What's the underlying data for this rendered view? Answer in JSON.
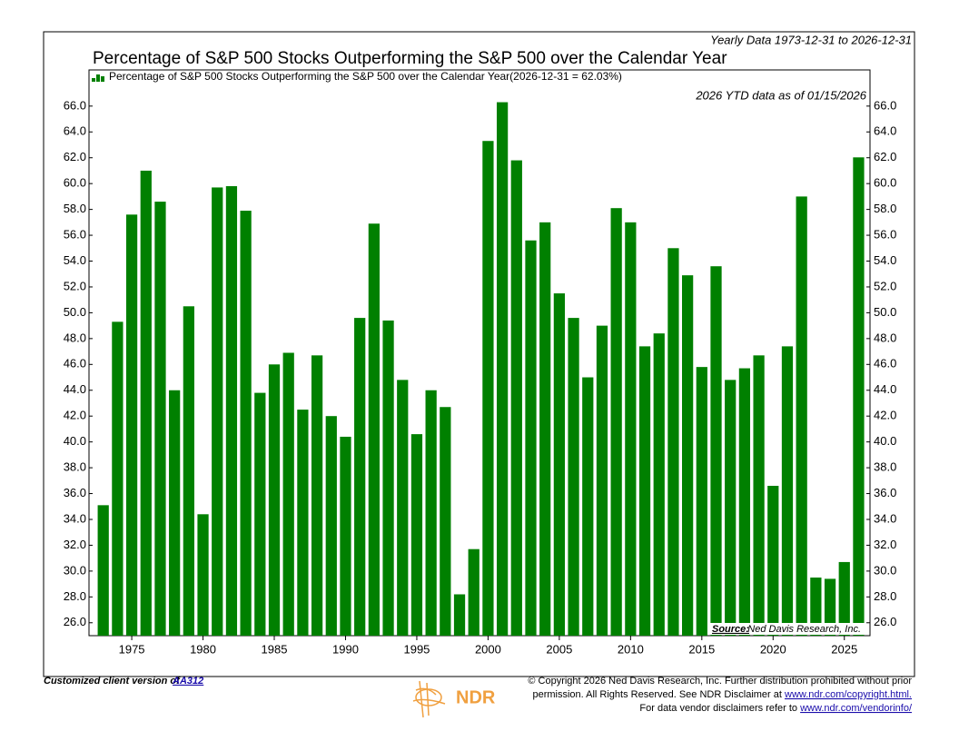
{
  "chart_data": {
    "type": "bar",
    "title": "Percentage of S&P 500 Stocks Outperforming the S&P 500 over the Calendar Year",
    "subtitle": "Yearly Data 1973-12-31 to 2026-12-31",
    "annotation": "2026 YTD data as of 01/15/2026",
    "source_label": "Source:",
    "source": "Ned Davis Research, Inc.",
    "series": [
      {
        "name": "Percentage of S&P 500 Stocks Outperforming the S&P 500 over the Calendar Year(2026-12-31 = 62.03%)",
        "color": "#008000",
        "values": [
          35.1,
          49.3,
          57.6,
          61.0,
          58.6,
          44.0,
          50.5,
          34.4,
          59.7,
          59.8,
          57.9,
          43.8,
          46.0,
          46.9,
          42.5,
          46.7,
          42.0,
          40.4,
          49.6,
          56.9,
          49.4,
          44.8,
          40.6,
          44.0,
          42.7,
          28.2,
          31.7,
          63.3,
          66.3,
          61.8,
          55.6,
          57.0,
          51.5,
          49.6,
          45.0,
          49.0,
          58.1,
          57.0,
          47.4,
          48.4,
          55.0,
          52.9,
          45.8,
          53.6,
          44.8,
          45.7,
          46.7,
          36.6,
          47.4,
          59.0,
          29.5,
          29.4,
          30.7,
          62.03
        ]
      }
    ],
    "x": [
      1973,
      1974,
      1975,
      1976,
      1977,
      1978,
      1979,
      1980,
      1981,
      1982,
      1983,
      1984,
      1985,
      1986,
      1987,
      1988,
      1989,
      1990,
      1991,
      1992,
      1993,
      1994,
      1995,
      1996,
      1997,
      1998,
      1999,
      2000,
      2001,
      2002,
      2003,
      2004,
      2005,
      2006,
      2007,
      2008,
      2009,
      2010,
      2011,
      2012,
      2013,
      2014,
      2015,
      2016,
      2017,
      2018,
      2019,
      2020,
      2021,
      2022,
      2023,
      2024,
      2025,
      2026
    ],
    "xlim": [
      1972,
      2026.8
    ],
    "xticks": [
      1975,
      1980,
      1985,
      1990,
      1995,
      2000,
      2005,
      2010,
      2015,
      2020,
      2025
    ],
    "ylim": [
      25,
      68.8
    ],
    "yticks": [
      {
        "value": 26,
        "label": "26.0"
      },
      {
        "value": 28,
        "label": "28.0"
      },
      {
        "value": 30,
        "label": "30.0"
      },
      {
        "value": 32,
        "label": "32.0"
      },
      {
        "value": 34,
        "label": "34.0"
      },
      {
        "value": 36,
        "label": "36.0"
      },
      {
        "value": 38,
        "label": "38.0"
      },
      {
        "value": 40,
        "label": "40.0"
      },
      {
        "value": 42,
        "label": "42.0"
      },
      {
        "value": 44,
        "label": "44.0"
      },
      {
        "value": 46,
        "label": "46.0"
      },
      {
        "value": 48,
        "label": "48.0"
      },
      {
        "value": 50,
        "label": "50.0"
      },
      {
        "value": 52,
        "label": "52.0"
      },
      {
        "value": 54,
        "label": "54.0"
      },
      {
        "value": 56,
        "label": "56.0"
      },
      {
        "value": 58,
        "label": "58.0"
      },
      {
        "value": 60,
        "label": "60.0"
      },
      {
        "value": 62,
        "label": "62.0"
      },
      {
        "value": 64,
        "label": "64.0"
      },
      {
        "value": 66,
        "label": "66.0"
      }
    ],
    "grid": false
  },
  "footer": {
    "client_note": "Customized client version of",
    "client_link": "AA312",
    "logo": "NDR",
    "copyright": [
      {
        "text": "© Copyright 2026 Ned Davis Research, Inc. Further distribution prohibited without prior"
      },
      {
        "text": "permission. All Rights Reserved. See NDR Disclaimer at ",
        "link": "www.ndr.com/copyright.html."
      },
      {
        "text": "For data vendor disclaimers refer to ",
        "link": "www.ndr.com/vendorinfo/"
      }
    ]
  }
}
